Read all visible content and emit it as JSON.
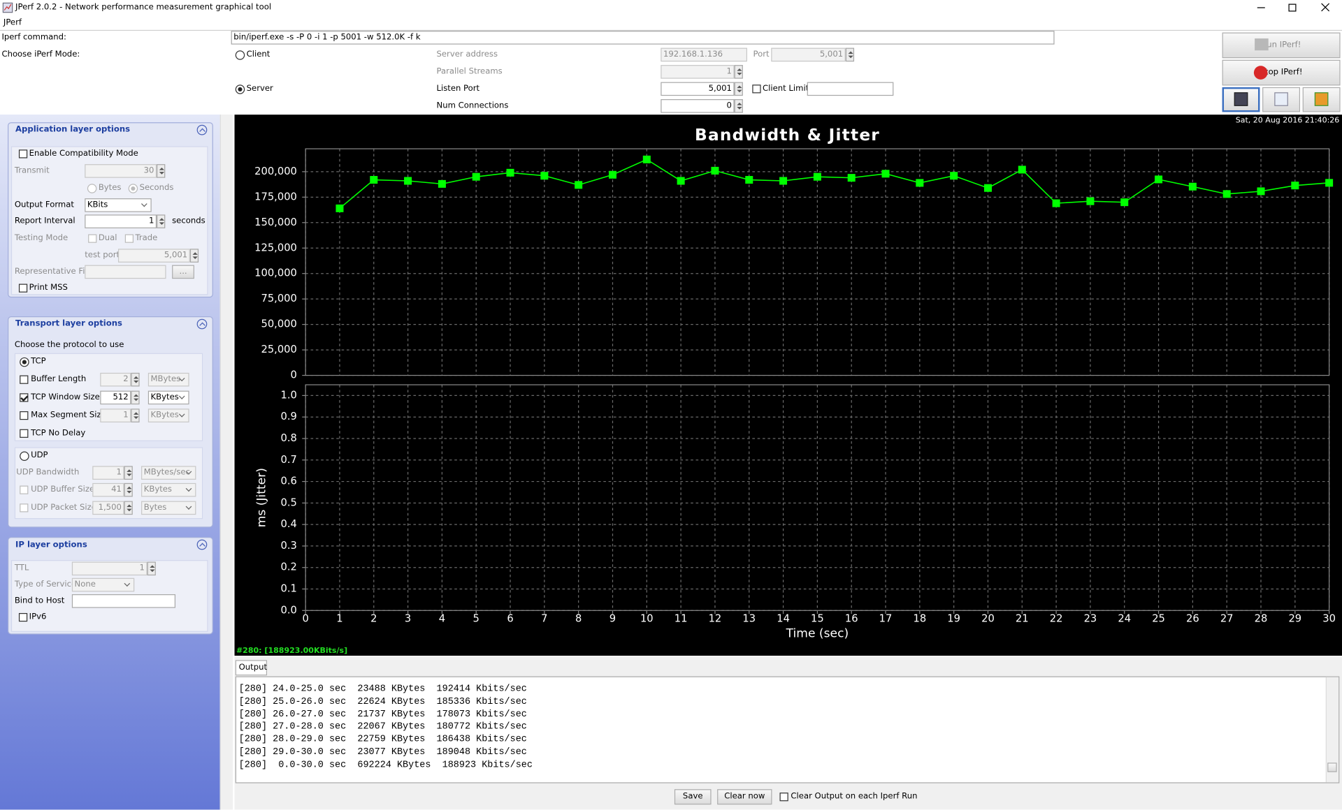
{
  "window": {
    "title": "JPerf 2.0.2 - Network performance measurement graphical tool",
    "menu": "JPerf"
  },
  "command": {
    "label": "Iperf command:",
    "value": "bin/iperf.exe -s -P 0 -i 1 -p 5001 -w 512.0K -f k"
  },
  "mode": {
    "label": "Choose iPerf Mode:",
    "client": "Client",
    "server": "Server",
    "server_address_label": "Server address",
    "server_address": "192.168.1.136",
    "port_label": "Port",
    "port": "5,001",
    "parallel_label": "Parallel Streams",
    "parallel": "1",
    "listen_port_label": "Listen Port",
    "listen_port": "5,001",
    "client_limit_label": "Client Limit",
    "num_connections_label": "Num Connections",
    "num_connections": "0"
  },
  "buttons": {
    "run": "Run IPerf!",
    "stop": "Stop IPerf!"
  },
  "app_options": {
    "title": "Application layer options",
    "compat": "Enable Compatibility Mode",
    "transmit_label": "Transmit",
    "transmit": "30",
    "bytes": "Bytes",
    "seconds": "Seconds",
    "output_format_label": "Output Format",
    "output_format": "KBits",
    "report_interval_label": "Report Interval",
    "report_interval": "1",
    "report_unit": "seconds",
    "testing_mode_label": "Testing Mode",
    "dual": "Dual",
    "trade": "Trade",
    "test_port_label": "test port",
    "test_port": "5,001",
    "rep_file_label": "Representative File",
    "browse": "...",
    "print_mss": "Print MSS"
  },
  "transport": {
    "title": "Transport layer options",
    "protocol_label": "Choose the protocol to use",
    "tcp": "TCP",
    "buffer_length_label": "Buffer Length",
    "buffer_length": "2",
    "buffer_length_unit": "MBytes",
    "window_size_label": "TCP Window Size",
    "window_size": "512",
    "window_size_unit": "KBytes",
    "mss_label": "Max Segment Size",
    "mss": "1",
    "mss_unit": "KBytes",
    "no_delay": "TCP No Delay",
    "udp": "UDP",
    "udp_bandwidth_label": "UDP Bandwidth",
    "udp_bandwidth": "1",
    "udp_bandwidth_unit": "MBytes/sec",
    "udp_buffer_label": "UDP Buffer Size",
    "udp_buffer": "41",
    "udp_buffer_unit": "KBytes",
    "udp_packet_label": "UDP Packet Size",
    "udp_packet": "1,500",
    "udp_packet_unit": "Bytes"
  },
  "ip": {
    "title": "IP layer options",
    "ttl_label": "TTL",
    "ttl": "1",
    "tos_label": "Type of Service",
    "tos": "None",
    "bind_label": "Bind to Host",
    "ipv6": "IPv6"
  },
  "graph": {
    "type": "line",
    "title": "Bandwidth & Jitter",
    "timestamp": "Sat, 20 Aug 2016 21:40:26",
    "x_label": "Time (sec)",
    "xlim": [
      0,
      30
    ],
    "xticks": [
      0,
      1,
      2,
      3,
      4,
      5,
      6,
      7,
      8,
      9,
      10,
      11,
      12,
      13,
      14,
      15,
      16,
      17,
      18,
      19,
      20,
      21,
      22,
      23,
      24,
      25,
      26,
      27,
      28,
      29,
      30
    ],
    "ylim": [
      0,
      222500
    ],
    "yticks": [
      0,
      {
        "value": 25000,
        "label": "25,000"
      },
      {
        "value": 50000,
        "label": "50,000"
      },
      {
        "value": 75000,
        "label": "75,000"
      },
      {
        "value": 100000,
        "label": "100,000"
      },
      {
        "value": 125000,
        "label": "125,000"
      },
      {
        "value": 150000,
        "label": "150,000"
      },
      {
        "value": 175000,
        "label": "175,000"
      },
      {
        "value": 200000,
        "label": "200,000"
      }
    ],
    "y2_label": "ms (Jitter)",
    "y2lim": [
      0,
      1.05
    ],
    "y2ticks": [
      {
        "value": 0,
        "label": "0.0"
      },
      0.1,
      0.2,
      0.3,
      0.4,
      0.5,
      0.6,
      0.7,
      0.8,
      0.9,
      {
        "value": 1,
        "label": "1.0"
      }
    ],
    "grid": true,
    "x": [
      1,
      2,
      3,
      4,
      5,
      6,
      7,
      8,
      9,
      10,
      11,
      12,
      13,
      14,
      15,
      16,
      17,
      18,
      19,
      20,
      21,
      22,
      23,
      24,
      25,
      26,
      27,
      28,
      29,
      30
    ],
    "series": [
      {
        "color": "#00ff00",
        "values": [
          164000,
          192000,
          191000,
          188000,
          195000,
          199000,
          196000,
          187000,
          197000,
          212000,
          191000,
          201000,
          192000,
          191000,
          195000,
          194000,
          198000,
          189000,
          196000,
          184000,
          202000,
          169000,
          171000,
          170000,
          192414,
          185336,
          178073,
          180772,
          186438,
          189048
        ]
      }
    ],
    "status": "#280: [188923.00KBits/s]"
  },
  "output": {
    "tab": "Output",
    "lines": [
      "[280] 24.0-25.0 sec  23488 KBytes  192414 Kbits/sec",
      "[280] 25.0-26.0 sec  22624 KBytes  185336 Kbits/sec",
      "[280] 26.0-27.0 sec  21737 KBytes  178073 Kbits/sec",
      "[280] 27.0-28.0 sec  22067 KBytes  180772 Kbits/sec",
      "[280] 28.0-29.0 sec  22759 KBytes  186438 Kbits/sec",
      "[280] 29.0-30.0 sec  23077 KBytes  189048 Kbits/sec",
      "[280]  0.0-30.0 sec  692224 KBytes  188923 Kbits/sec"
    ],
    "save": "Save",
    "clear": "Clear now",
    "clear_each": "Clear Output on each Iperf Run"
  }
}
